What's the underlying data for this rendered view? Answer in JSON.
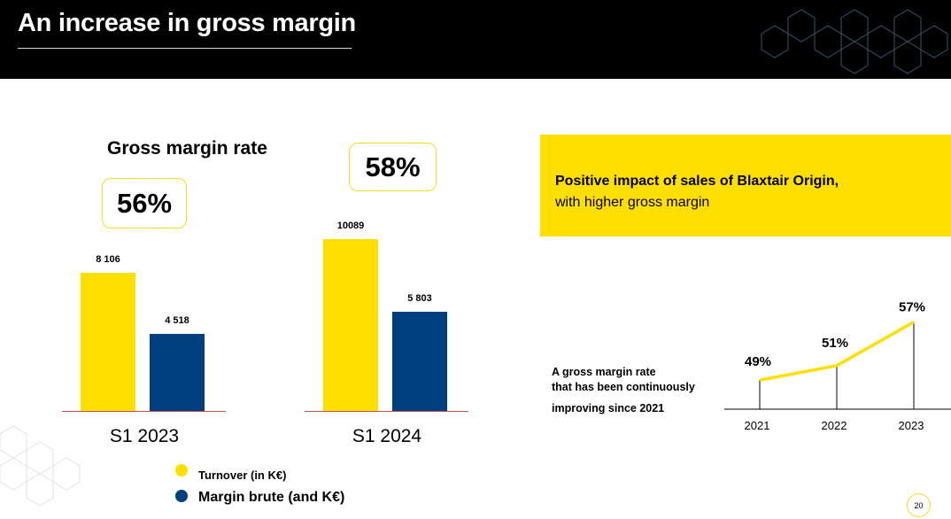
{
  "header": {
    "title": "An increase in gross margin"
  },
  "colors": {
    "turnover": "#ffdf00",
    "margin": "#003f7d",
    "accent": "#ffdf00"
  },
  "left_section": {
    "subtitle": "Gross margin rate",
    "rates": [
      "56%",
      "58%"
    ]
  },
  "chart_data": [
    {
      "type": "bar",
      "categories": [
        "S1 2023",
        "S1 2024"
      ],
      "series": [
        {
          "name": "Turnover (in K€)",
          "values": [
            8106,
            10089
          ],
          "labels": [
            "8 106",
            "10089"
          ]
        },
        {
          "name": "Margin brute (and K€)",
          "values": [
            4518,
            5803
          ],
          "labels": [
            "4 518",
            "5 803"
          ]
        }
      ],
      "gross_margin_rates": [
        "56%",
        "58%"
      ],
      "title": "Gross margin rate",
      "ylim": [
        0,
        11000
      ],
      "legend": "bottom"
    },
    {
      "type": "line",
      "x": [
        "2021",
        "2022",
        "2023"
      ],
      "values": [
        49,
        51,
        57
      ],
      "labels": [
        "49%",
        "51%",
        "57%"
      ],
      "ylim": [
        40,
        60
      ]
    }
  ],
  "callout": {
    "line1": "Positive impact of sales of Blaxtair Origin,",
    "line2": "with higher gross margin"
  },
  "note": {
    "line1": "A gross margin rate",
    "line2": "that has been continuously",
    "line3": "improving since 2021"
  },
  "page_number": "20"
}
